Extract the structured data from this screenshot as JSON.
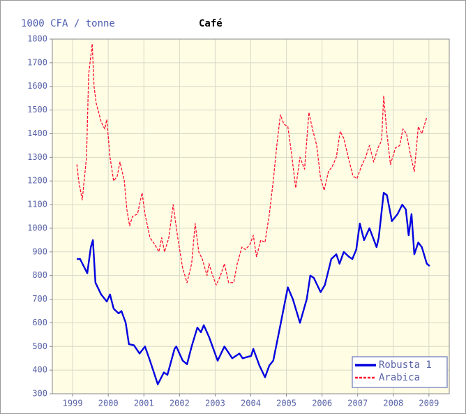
{
  "chart_data": {
    "type": "line",
    "title": "Café",
    "ylabel": "1000 CFA / tonne",
    "xlim": [
      1998.43,
      2009.57
    ],
    "xticks": [
      1999,
      2000,
      2001,
      2002,
      2003,
      2004,
      2005,
      2006,
      2007,
      2008,
      2009
    ],
    "ylim": [
      300,
      1800
    ],
    "yticks": [
      300,
      400,
      500,
      600,
      700,
      800,
      900,
      1000,
      1100,
      1200,
      1300,
      1400,
      1500,
      1600,
      1700,
      1800
    ],
    "grid": true,
    "legend": "lower right",
    "series": [
      {
        "name": "Robusta 1",
        "color": "#0000e0",
        "linestyle": "solid",
        "x": [
          1999.12,
          1999.21,
          1999.41,
          1999.51,
          1999.57,
          1999.64,
          1999.8,
          1999.96,
          2000.05,
          2000.15,
          2000.29,
          2000.37,
          2000.49,
          2000.58,
          2000.72,
          2000.88,
          2001.03,
          2001.17,
          2001.39,
          2001.56,
          2001.66,
          2001.86,
          2001.91,
          2002.09,
          2002.21,
          2002.34,
          2002.5,
          2002.6,
          2002.68,
          2002.83,
          2003.07,
          2003.26,
          2003.48,
          2003.68,
          2003.77,
          2004.01,
          2004.07,
          2004.24,
          2004.4,
          2004.52,
          2004.63,
          2004.79,
          2005.04,
          2005.18,
          2005.38,
          2005.57,
          2005.67,
          2005.77,
          2005.96,
          2006.08,
          2006.26,
          2006.4,
          2006.49,
          2006.61,
          2006.75,
          2006.85,
          2006.96,
          2007.06,
          2007.18,
          2007.33,
          2007.53,
          2007.59,
          2007.73,
          2007.82,
          2007.96,
          2008.12,
          2008.25,
          2008.35,
          2008.43,
          2008.51,
          2008.59,
          2008.7,
          2008.8,
          2008.94,
          2009.02
        ],
        "values": [
          870,
          870,
          810,
          920,
          950,
          770,
          720,
          690,
          720,
          660,
          640,
          650,
          600,
          510,
          505,
          470,
          500,
          440,
          340,
          390,
          380,
          490,
          500,
          440,
          425,
          500,
          580,
          560,
          590,
          540,
          440,
          500,
          450,
          470,
          450,
          460,
          490,
          420,
          370,
          420,
          440,
          560,
          750,
          700,
          600,
          700,
          800,
          790,
          730,
          760,
          870,
          890,
          850,
          900,
          880,
          870,
          910,
          1020,
          950,
          1000,
          920,
          960,
          1150,
          1140,
          1030,
          1060,
          1100,
          1080,
          970,
          1060,
          890,
          940,
          920,
          850,
          840
        ]
      },
      {
        "name": "Arabica",
        "color": "#ff1030",
        "linestyle": "dashed",
        "x": [
          1999.12,
          1999.17,
          1999.27,
          1999.39,
          1999.45,
          1999.55,
          1999.6,
          1999.66,
          1999.8,
          1999.9,
          1999.96,
          2000.05,
          2000.15,
          2000.25,
          2000.33,
          2000.45,
          2000.52,
          2000.6,
          2000.68,
          2000.82,
          2000.95,
          2001.03,
          2001.17,
          2001.31,
          2001.42,
          2001.5,
          2001.58,
          2001.7,
          2001.82,
          2001.95,
          2002.09,
          2002.21,
          2002.34,
          2002.44,
          2002.54,
          2002.64,
          2002.77,
          2002.83,
          2002.93,
          2003.03,
          2003.15,
          2003.26,
          2003.38,
          2003.52,
          2003.62,
          2003.75,
          2003.85,
          2003.97,
          2004.07,
          2004.16,
          2004.28,
          2004.4,
          2004.52,
          2004.63,
          2004.73,
          2004.83,
          2004.93,
          2005.04,
          2005.14,
          2005.26,
          2005.38,
          2005.51,
          2005.63,
          2005.73,
          2005.85,
          2005.96,
          2006.06,
          2006.18,
          2006.28,
          2006.4,
          2006.51,
          2006.61,
          2006.75,
          2006.87,
          2006.98,
          2007.1,
          2007.22,
          2007.33,
          2007.45,
          2007.57,
          2007.67,
          2007.73,
          2007.82,
          2007.92,
          2008.06,
          2008.18,
          2008.27,
          2008.37,
          2008.47,
          2008.59,
          2008.7,
          2008.8,
          2008.94
        ],
        "values": [
          1270,
          1200,
          1120,
          1300,
          1650,
          1780,
          1600,
          1530,
          1450,
          1420,
          1460,
          1300,
          1200,
          1220,
          1280,
          1200,
          1080,
          1010,
          1050,
          1060,
          1150,
          1060,
          960,
          930,
          900,
          960,
          900,
          960,
          1100,
          960,
          830,
          770,
          850,
          1020,
          900,
          870,
          800,
          850,
          800,
          760,
          800,
          850,
          770,
          770,
          850,
          920,
          910,
          930,
          970,
          880,
          950,
          940,
          1060,
          1200,
          1350,
          1480,
          1440,
          1430,
          1320,
          1170,
          1300,
          1250,
          1490,
          1420,
          1350,
          1210,
          1160,
          1240,
          1260,
          1300,
          1410,
          1380,
          1290,
          1220,
          1210,
          1260,
          1300,
          1350,
          1280,
          1340,
          1370,
          1560,
          1400,
          1270,
          1340,
          1350,
          1420,
          1400,
          1320,
          1240,
          1430,
          1400,
          1470
        ]
      }
    ]
  }
}
